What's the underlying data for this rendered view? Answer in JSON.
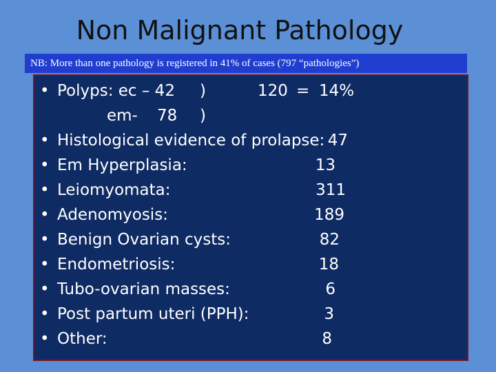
{
  "title": "Non Malignant Pathology",
  "note": "NB: More than one pathology is registered in  41% of cases (797 “pathologies”)",
  "polyps": {
    "bullet": "•",
    "label": "Polyps: ec – 42",
    "paren1": ")",
    "total": "120",
    "equals": "=",
    "percent": "14%",
    "em_label": "em-",
    "em_value": "78",
    "paren2": ")"
  },
  "items": [
    {
      "bullet": "•",
      "label": "Histological evidence of prolapse:",
      "value": "47"
    },
    {
      "bullet": "•",
      "label": "Em Hyperplasia:",
      "value": "13"
    },
    {
      "bullet": "•",
      "label": "Leiomyomata:",
      "value": "311"
    },
    {
      "bullet": "•",
      "label": "Adenomyosis:",
      "value": "189"
    },
    {
      "bullet": "•",
      "label": "Benign Ovarian cysts:",
      "value": "82"
    },
    {
      "bullet": "•",
      "label": "Endometriosis:",
      "value": "18"
    },
    {
      "bullet": "•",
      "label": "Tubo-ovarian masses:",
      "value": "6"
    },
    {
      "bullet": "•",
      "label": "Post partum uteri (PPH):",
      "value": "3"
    },
    {
      "bullet": "•",
      "label": "Other:",
      "value": "8"
    }
  ]
}
